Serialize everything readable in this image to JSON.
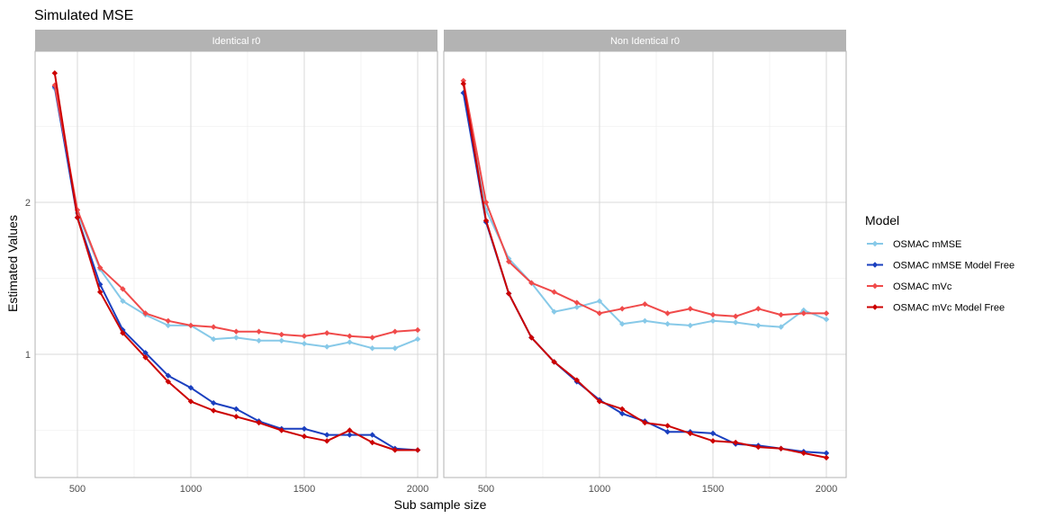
{
  "chart_data": {
    "type": "line",
    "title": "Simulated MSE",
    "xlabel": "Sub sample size",
    "ylabel": "Estimated Values",
    "x_ticks": [
      500,
      1000,
      1500,
      2000
    ],
    "y_ticks": [
      1,
      2
    ],
    "xlim": [
      300,
      2100
    ],
    "ylim": [
      0.2,
      3.0
    ],
    "grid": true,
    "legend": {
      "title": "Model",
      "position": "right"
    },
    "panels": [
      {
        "strip": "Identical r0",
        "x": [
          400,
          500,
          600,
          700,
          800,
          900,
          1000,
          1100,
          1200,
          1300,
          1400,
          1500,
          1600,
          1700,
          1800,
          1900,
          2000
        ],
        "series": [
          {
            "name": "OSMAC mMSE",
            "color": "#87c9e8",
            "values": [
              2.75,
              1.93,
              1.56,
              1.35,
              1.26,
              1.19,
              1.19,
              1.1,
              1.11,
              1.09,
              1.09,
              1.07,
              1.05,
              1.08,
              1.04,
              1.04,
              1.1
            ]
          },
          {
            "name": "OSMAC mMSE Model Free",
            "color": "#1a3fbf",
            "values": [
              2.76,
              1.9,
              1.46,
              1.16,
              1.01,
              0.86,
              0.78,
              0.68,
              0.64,
              0.56,
              0.51,
              0.51,
              0.47,
              0.47,
              0.47,
              0.38,
              0.37
            ]
          },
          {
            "name": "OSMAC mVc",
            "color": "#f04a4a",
            "values": [
              2.77,
              1.95,
              1.57,
              1.43,
              1.27,
              1.22,
              1.19,
              1.18,
              1.15,
              1.15,
              1.13,
              1.12,
              1.14,
              1.12,
              1.11,
              1.15,
              1.16
            ]
          },
          {
            "name": "OSMAC mVc Model Free",
            "color": "#cc0000",
            "values": [
              2.85,
              1.9,
              1.41,
              1.14,
              0.98,
              0.82,
              0.69,
              0.63,
              0.59,
              0.55,
              0.5,
              0.46,
              0.43,
              0.5,
              0.42,
              0.37,
              0.37
            ]
          }
        ]
      },
      {
        "strip": "Non Identical r0",
        "x": [
          400,
          500,
          600,
          700,
          800,
          900,
          1000,
          1100,
          1200,
          1300,
          1400,
          1500,
          1600,
          1700,
          1800,
          1900,
          2000
        ],
        "series": [
          {
            "name": "OSMAC mMSE",
            "color": "#87c9e8",
            "values": [
              2.72,
              1.95,
              1.63,
              1.47,
              1.28,
              1.31,
              1.35,
              1.2,
              1.22,
              1.2,
              1.19,
              1.22,
              1.21,
              1.19,
              1.18,
              1.29,
              1.23
            ]
          },
          {
            "name": "OSMAC mMSE Model Free",
            "color": "#1a3fbf",
            "values": [
              2.72,
              1.87,
              1.4,
              1.11,
              0.95,
              0.82,
              0.7,
              0.61,
              0.56,
              0.49,
              0.49,
              0.48,
              0.41,
              0.4,
              0.38,
              0.36,
              0.35
            ]
          },
          {
            "name": "OSMAC mVc",
            "color": "#f04a4a",
            "values": [
              2.8,
              2.0,
              1.61,
              1.47,
              1.41,
              1.34,
              1.27,
              1.3,
              1.33,
              1.27,
              1.3,
              1.26,
              1.25,
              1.3,
              1.26,
              1.27,
              1.27
            ]
          },
          {
            "name": "OSMAC mVc Model Free",
            "color": "#cc0000",
            "values": [
              2.78,
              1.88,
              1.4,
              1.11,
              0.95,
              0.83,
              0.69,
              0.64,
              0.55,
              0.53,
              0.48,
              0.43,
              0.42,
              0.39,
              0.38,
              0.35,
              0.32
            ]
          }
        ]
      }
    ]
  }
}
